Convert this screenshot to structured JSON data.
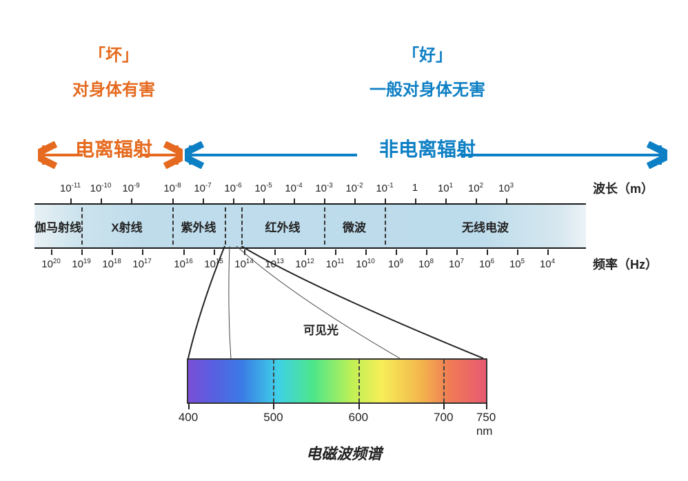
{
  "title": "电磁波频谱",
  "bad": {
    "tag": "「坏」",
    "desc": "对身体有害",
    "range": "电离辐射",
    "color": "#e56a1f"
  },
  "good": {
    "tag": "「好」",
    "desc": "一般对身体无害",
    "range": "非电离辐射",
    "color": "#0d7fc4"
  },
  "split_at_pct": 27.0,
  "wavelength": {
    "title": "波长（m）",
    "ticks": [
      {
        "pct": 6.5,
        "exp": -11
      },
      {
        "pct": 12.0,
        "exp": -10
      },
      {
        "pct": 17.5,
        "exp": -9
      },
      {
        "pct": 25.0,
        "exp": -8
      },
      {
        "pct": 30.5,
        "exp": -7
      },
      {
        "pct": 36.0,
        "exp": -6
      },
      {
        "pct": 41.5,
        "exp": -5
      },
      {
        "pct": 47.0,
        "exp": -4
      },
      {
        "pct": 52.5,
        "exp": -3
      },
      {
        "pct": 58.0,
        "exp": -2
      },
      {
        "pct": 63.5,
        "exp": -1
      },
      {
        "pct": 69.0,
        "label": "1"
      },
      {
        "pct": 74.5,
        "exp": 1
      },
      {
        "pct": 80.0,
        "exp": 2
      },
      {
        "pct": 85.5,
        "exp": 3
      }
    ]
  },
  "frequency": {
    "title": "频率（Hz）",
    "ticks": [
      {
        "pct": 3.0,
        "exp": 20
      },
      {
        "pct": 8.5,
        "exp": 19
      },
      {
        "pct": 14.0,
        "exp": 18
      },
      {
        "pct": 19.5,
        "exp": 17
      },
      {
        "pct": 27.0,
        "exp": 16
      },
      {
        "pct": 32.5,
        "exp": 15
      },
      {
        "pct": 38.0,
        "exp": 14
      },
      {
        "pct": 43.5,
        "exp": 13
      },
      {
        "pct": 49.0,
        "exp": 12
      },
      {
        "pct": 54.5,
        "exp": 11
      },
      {
        "pct": 60.0,
        "exp": 10
      },
      {
        "pct": 65.5,
        "exp": 9
      },
      {
        "pct": 71.0,
        "exp": 8
      },
      {
        "pct": 76.5,
        "exp": 7
      },
      {
        "pct": 82.0,
        "exp": 6
      },
      {
        "pct": 87.5,
        "exp": 5
      },
      {
        "pct": 93.0,
        "exp": 4
      }
    ]
  },
  "bands": [
    {
      "label": "伽马射线",
      "start_pct": 0,
      "end_pct": 8.5
    },
    {
      "label": "X射线",
      "start_pct": 8.5,
      "end_pct": 25.0
    },
    {
      "label": "紫外线",
      "start_pct": 25.0,
      "end_pct": 34.5
    },
    {
      "label": "红外线",
      "start_pct": 37.5,
      "end_pct": 52.5
    },
    {
      "label": "微波",
      "start_pct": 52.5,
      "end_pct": 63.5
    },
    {
      "label": "无线电波",
      "start_pct": 63.5,
      "end_pct": 100
    }
  ],
  "band_dividers_pct": [
    8.5,
    25.0,
    34.5,
    37.5,
    52.5,
    63.5
  ],
  "visible": {
    "label": "可见光",
    "start_pct_on_main": 34.5,
    "end_pct_on_main": 37.5,
    "ticks_nm": [
      400,
      500,
      600,
      700,
      750
    ],
    "nm_unit": "nm",
    "gradient_stops": [
      {
        "pct": 0,
        "hex": "#7a4fd6"
      },
      {
        "pct": 8,
        "hex": "#5a5ee0"
      },
      {
        "pct": 18,
        "hex": "#3a7be6"
      },
      {
        "pct": 30,
        "hex": "#3fd0e8"
      },
      {
        "pct": 42,
        "hex": "#4de68a"
      },
      {
        "pct": 55,
        "hex": "#bff055"
      },
      {
        "pct": 65,
        "hex": "#f7ee58"
      },
      {
        "pct": 78,
        "hex": "#f3b64d"
      },
      {
        "pct": 88,
        "hex": "#ef7a55"
      },
      {
        "pct": 100,
        "hex": "#e85a72"
      }
    ]
  },
  "styling": {
    "background": "#ffffff",
    "spectrum_band_bg": "#bfdceb",
    "text_color": "#222222",
    "border_color": "#1a1a1a",
    "font_family": "Kaiti/handwritten",
    "title_fontsize": 22,
    "cat_fontsize": 24,
    "range_fontsize": 28,
    "band_fontsize": 17,
    "tick_fontsize": 15,
    "arrow_stroke_width": 4
  }
}
